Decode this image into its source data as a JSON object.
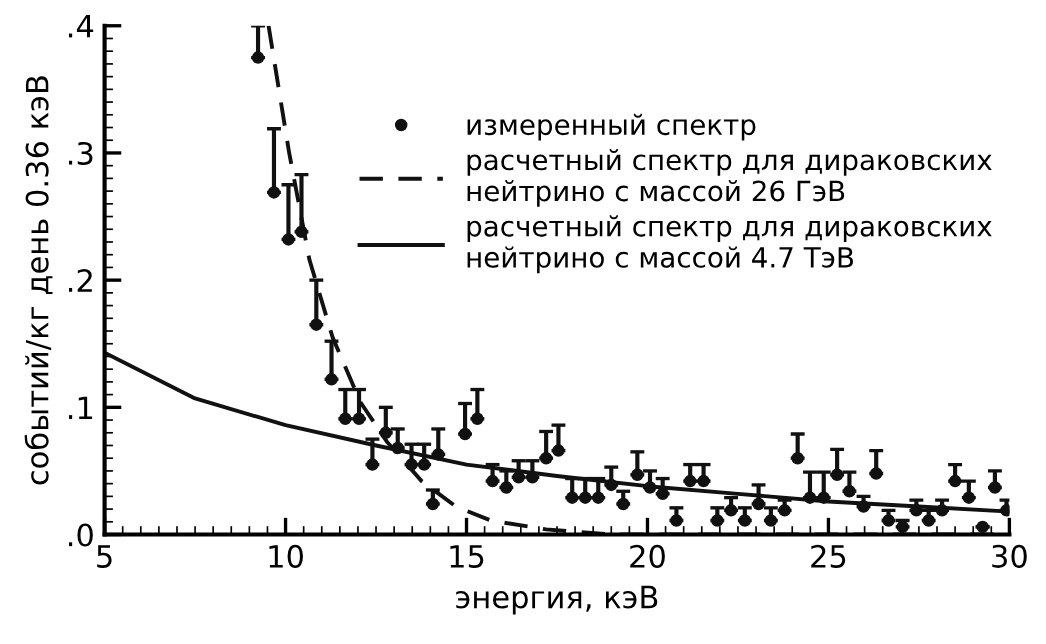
{
  "chart_data": {
    "type": "scatter",
    "xlabel": "энергия, кэВ",
    "ylabel": "событий/кг день 0.36 кэВ",
    "xlim": [
      5,
      30
    ],
    "xticks": [
      5,
      10,
      15,
      20,
      25,
      30
    ],
    "ylim": [
      0,
      0.4
    ],
    "yticks": [
      {
        "value": 0,
        "label": ".0"
      },
      {
        "value": 0.1,
        "label": ".1"
      },
      {
        "value": 0.2,
        "label": ".2"
      },
      {
        "value": 0.3,
        "label": ".3"
      },
      {
        "value": 0.4,
        "label": ".4"
      }
    ],
    "grid": false,
    "legend": "top right",
    "series": [
      {
        "name": "измеренный спектр",
        "marker": "circle",
        "color": "#111111",
        "x": [
          9.24,
          9.68,
          10.08,
          10.44,
          10.85,
          11.27,
          11.65,
          12.03,
          12.4,
          12.77,
          13.1,
          13.48,
          13.83,
          14.07,
          14.22,
          14.96,
          15.3,
          15.72,
          16.1,
          16.44,
          16.82,
          17.2,
          17.54,
          17.92,
          18.28,
          18.64,
          19.0,
          19.33,
          19.72,
          20.07,
          20.42,
          20.8,
          21.18,
          21.55,
          21.93,
          22.31,
          22.69,
          23.07,
          23.41,
          23.79,
          24.15,
          24.49,
          24.87,
          25.24,
          25.58,
          25.97,
          26.32,
          26.66,
          27.05,
          27.43,
          27.77,
          28.14,
          28.5,
          28.88,
          29.26,
          29.6,
          29.92
        ],
        "values": [
          0.375,
          0.269,
          0.232,
          0.238,
          0.165,
          0.122,
          0.091,
          0.091,
          0.055,
          0.08,
          0.068,
          0.055,
          0.055,
          0.024,
          0.063,
          0.079,
          0.091,
          0.042,
          0.037,
          0.045,
          0.045,
          0.06,
          0.066,
          0.029,
          0.029,
          0.029,
          0.039,
          0.024,
          0.047,
          0.037,
          0.032,
          0.011,
          0.042,
          0.042,
          0.011,
          0.019,
          0.011,
          0.024,
          0.011,
          0.019,
          0.06,
          0.029,
          0.029,
          0.047,
          0.034,
          0.022,
          0.048,
          0.011,
          0.006,
          0.019,
          0.011,
          0.019,
          0.042,
          0.029,
          0.006,
          0.037,
          0.019
        ],
        "errors": [
          [
            0.375,
            0.4
          ],
          [
            0.269,
            0.319
          ],
          [
            0.232,
            0.275
          ],
          [
            0.238,
            0.283
          ],
          [
            0.165,
            0.2
          ],
          [
            0.122,
            0.152
          ],
          [
            0.091,
            0.114
          ],
          [
            0.091,
            0.114
          ],
          [
            0.055,
            0.075
          ],
          [
            0.08,
            0.1
          ],
          [
            0.068,
            0.083
          ],
          [
            0.055,
            0.071
          ],
          [
            0.055,
            0.071
          ],
          [
            0.024,
            0.035
          ],
          [
            0.063,
            0.083
          ],
          [
            0.079,
            0.103
          ],
          [
            0.091,
            0.114
          ],
          [
            0.042,
            0.055
          ],
          [
            0.037,
            0.05
          ],
          [
            0.045,
            0.058
          ],
          [
            0.045,
            0.058
          ],
          [
            0.06,
            0.081
          ],
          [
            0.066,
            0.086
          ],
          [
            0.029,
            0.044
          ],
          [
            0.029,
            0.044
          ],
          [
            0.029,
            0.044
          ],
          [
            0.039,
            0.053
          ],
          [
            0.024,
            0.034
          ],
          [
            0.047,
            0.065
          ],
          [
            0.037,
            0.05
          ],
          [
            0.032,
            0.044
          ],
          [
            0.011,
            0.021
          ],
          [
            0.042,
            0.055
          ],
          [
            0.042,
            0.055
          ],
          [
            0.011,
            0.021
          ],
          [
            0.019,
            0.029
          ],
          [
            0.011,
            0.021
          ],
          [
            0.024,
            0.039
          ],
          [
            0.011,
            0.021
          ],
          [
            0.019,
            0.027
          ],
          [
            0.06,
            0.079
          ],
          [
            0.029,
            0.049
          ],
          [
            0.029,
            0.049
          ],
          [
            0.047,
            0.067
          ],
          [
            0.034,
            0.049
          ],
          [
            0.022,
            0.03
          ],
          [
            0.048,
            0.066
          ],
          [
            0.011,
            0.019
          ],
          [
            0.006,
            0.011
          ],
          [
            0.019,
            0.027
          ],
          [
            0.011,
            0.019
          ],
          [
            0.019,
            0.027
          ],
          [
            0.042,
            0.055
          ],
          [
            0.029,
            0.042
          ],
          null,
          [
            0.037,
            0.05
          ],
          [
            0.019,
            0.027
          ]
        ]
      },
      {
        "name": "расчетный спектр для дираковских нейтрино с массой 26 ГэВ",
        "type": "line",
        "line_style": "dashed",
        "color": "#111111",
        "x": [
          9.53,
          10.1,
          10.66,
          11.3,
          12.07,
          12.8,
          13.76,
          14.71,
          15.67,
          17.2,
          19.0,
          30.0
        ],
        "values": [
          0.4,
          0.3,
          0.216,
          0.155,
          0.104,
          0.073,
          0.042,
          0.022,
          0.011,
          0.004,
          0.0,
          0.0
        ]
      },
      {
        "name": "расчетный спектр для дираковских нейтрино с массой 4.7 ТэВ",
        "type": "line",
        "line_style": "solid",
        "color": "#111111",
        "x": [
          5,
          7.5,
          10,
          12.5,
          15,
          17.5,
          20,
          22.5,
          25,
          27.5,
          30
        ],
        "values": [
          0.143,
          0.107,
          0.086,
          0.07,
          0.055,
          0.046,
          0.038,
          0.032,
          0.026,
          0.022,
          0.018
        ]
      }
    ]
  }
}
